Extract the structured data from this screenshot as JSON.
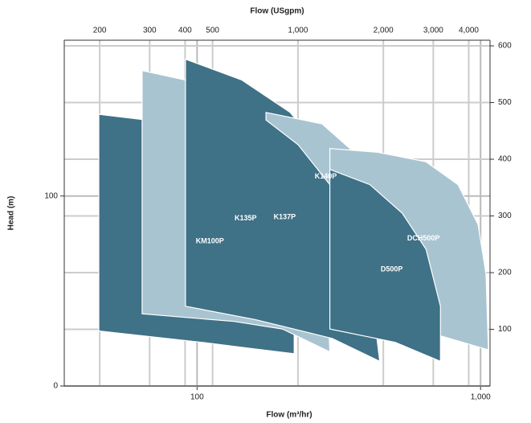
{
  "chart_data": {
    "type": "area",
    "x_label": "Flow (m³/hr)",
    "x2_label": "Flow (USgpm)",
    "y_label": "Head (m)",
    "xscale": "log",
    "xlim": [
      34,
      1080
    ],
    "xticks": [
      100,
      {
        "value": 1000,
        "label": "1,000"
      }
    ],
    "x2lim": [
      150,
      4755
    ],
    "x2ticks": [
      200,
      300,
      400,
      500,
      {
        "value": 1000,
        "label": "1,000"
      },
      {
        "value": 2000,
        "label": "2,000"
      },
      {
        "value": 3000,
        "label": "3,000"
      },
      {
        "value": 4000,
        "label": "4,000"
      }
    ],
    "ylim": [
      0,
      182
    ],
    "yticks": [
      0,
      100
    ],
    "y2lim": [
      0,
      610
    ],
    "y2ticks": [
      100,
      200,
      300,
      400,
      500,
      600
    ],
    "grid": true,
    "series": [
      {
        "name": "KM100P",
        "color": "#3f7187",
        "x": [
          45,
          66,
          104,
          144,
          187,
          220,
          220,
          150,
          104,
          45
        ],
        "values": [
          143,
          140,
          129,
          112,
          85,
          63,
          17,
          20,
          23,
          29
        ]
      },
      {
        "name": "K135P",
        "color": "#a9c4d1",
        "x": [
          64,
          91,
          135,
          187,
          242,
          285,
          294,
          200,
          135,
          64
        ],
        "values": [
          166,
          161,
          146,
          125,
          97,
          68,
          18,
          30,
          34,
          38
        ]
      },
      {
        "name": "K137P",
        "color": "#3f7187",
        "x": [
          91,
          144,
          213,
          294,
          382,
          441,
          300,
          160,
          91
        ],
        "values": [
          172,
          161,
          144,
          118,
          89,
          13,
          25,
          35,
          42
        ]
      },
      {
        "name": "K140P",
        "color": "#a9c4d1",
        "x": [
          175,
          276,
          346,
          402,
          435,
          357,
          294,
          227,
          175
        ],
        "values": [
          144,
          138,
          125,
          93,
          42,
          76,
          106,
          127,
          140
        ]
      },
      {
        "name": "DCH500P",
        "color": "#a9c4d1",
        "x": [
          294,
          435,
          642,
          833,
          980,
          1045,
          1066,
          700,
          294
        ],
        "values": [
          125,
          123,
          118,
          106,
          85,
          59,
          19,
          27,
          36
        ]
      },
      {
        "name": "D500P",
        "color": "#3f7187",
        "x": [
          294,
          407,
          529,
          642,
          722,
          722,
          500,
          294
        ],
        "values": [
          114,
          106,
          91,
          72,
          42,
          13,
          23,
          30
        ]
      }
    ]
  }
}
